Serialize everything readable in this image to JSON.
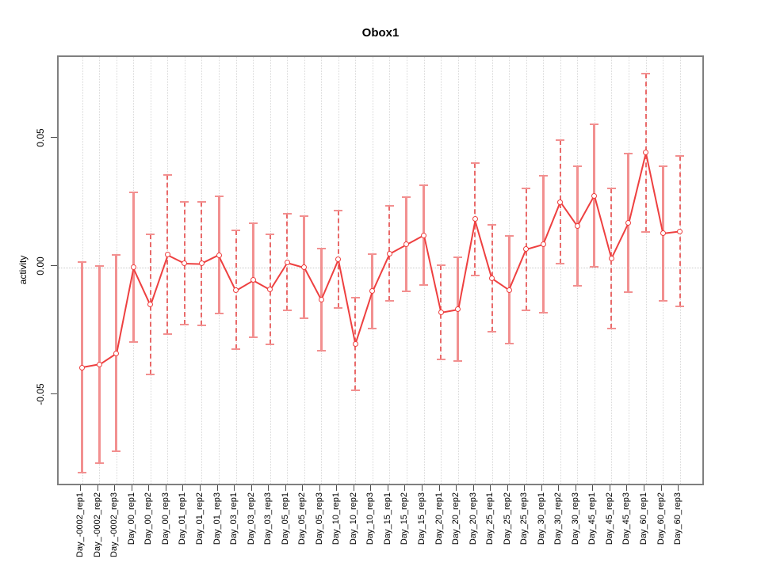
{
  "title": "Obox1",
  "chart_data": {
    "type": "scatter",
    "subtype": "points-with-error-bars-connected-by-line",
    "title": "Obox1",
    "xlabel": "",
    "ylabel": "activity",
    "ylim": [
      -0.0856,
      0.0819
    ],
    "y_ticks": [
      {
        "label": "0.05",
        "value": 0.05
      },
      {
        "label": "0.00",
        "value": 0.0
      },
      {
        "label": "-0.05",
        "value": -0.05
      }
    ],
    "grid": "vertical dotted gridline at every category; horizontal dotted line at y=0 only",
    "legend": "none",
    "categories": [
      "Day_-0002_rep1",
      "Day_-0002_rep2",
      "Day_-0002_rep3",
      "Day_00_rep1",
      "Day_00_rep2",
      "Day_00_rep3",
      "Day_01_rep1",
      "Day_01_rep2",
      "Day_01_rep3",
      "Day_03_rep1",
      "Day_03_rep2",
      "Day_03_rep3",
      "Day_05_rep1",
      "Day_05_rep2",
      "Day_05_rep3",
      "Day_10_rep1",
      "Day_10_rep2",
      "Day_10_rep3",
      "Day_15_rep1",
      "Day_15_rep2",
      "Day_15_rep3",
      "Day_20_rep1",
      "Day_20_rep2",
      "Day_20_rep3",
      "Day_25_rep1",
      "Day_25_rep2",
      "Day_25_rep3",
      "Day_30_rep1",
      "Day_30_rep2",
      "Day_30_rep3",
      "Day_45_rep1",
      "Day_45_rep2",
      "Day_45_rep3",
      "Day_60_rep1",
      "Day_60_rep2",
      "Day_60_rep3"
    ],
    "series": [
      {
        "name": "activity",
        "values": [
          -0.0391,
          -0.0379,
          -0.0335,
          0.0,
          -0.0145,
          0.0049,
          0.0016,
          0.0014,
          0.0047,
          -0.0089,
          -0.005,
          -0.0087,
          0.0019,
          0.0,
          -0.0126,
          0.003,
          -0.0299,
          -0.0094,
          0.0053,
          0.0089,
          0.0125,
          -0.0176,
          -0.0164,
          0.0187,
          -0.0043,
          -0.0088,
          0.007,
          0.0089,
          0.0254,
          0.0159,
          0.0279,
          0.0034,
          0.0173,
          0.0446,
          0.0132,
          0.014
        ],
        "errors": [
          0.041,
          0.0385,
          0.0383,
          0.0291,
          0.0273,
          0.031,
          0.0239,
          0.0242,
          0.0229,
          0.0231,
          0.0222,
          0.0214,
          0.0188,
          0.0198,
          0.0199,
          0.019,
          0.018,
          0.0145,
          0.0185,
          0.0183,
          0.0195,
          0.0185,
          0.0203,
          0.0219,
          0.0209,
          0.0211,
          0.0237,
          0.0266,
          0.024,
          0.0233,
          0.0277,
          0.0273,
          0.0269,
          0.0308,
          0.0263,
          0.0293
        ],
        "bar_style_dashed": [
          false,
          false,
          false,
          false,
          true,
          true,
          true,
          true,
          false,
          true,
          false,
          true,
          true,
          false,
          false,
          true,
          true,
          false,
          true,
          false,
          false,
          true,
          false,
          true,
          true,
          false,
          true,
          false,
          true,
          false,
          false,
          true,
          false,
          true,
          false,
          true
        ]
      }
    ],
    "colors": {
      "point_outline": "#ee4040",
      "connect_line": "#ee4040",
      "error_bar_solid": "#f29090",
      "error_bar_dashed": "#e96a6a",
      "error_cap": "#f29090",
      "gridline": "#d9d9d9",
      "zero_line": "#c9c9c9",
      "plot_border": "#7f7f7f",
      "tick": "#4d4d4d",
      "text": "#000000"
    }
  }
}
